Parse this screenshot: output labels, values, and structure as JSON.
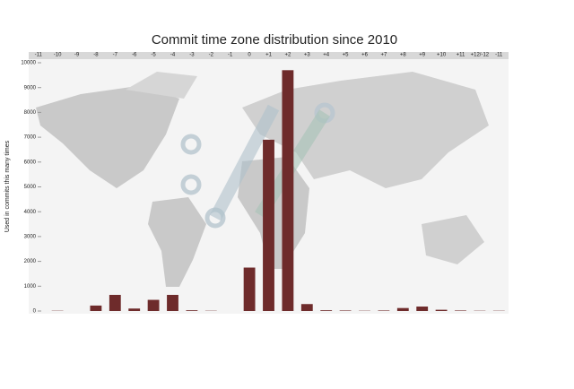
{
  "chart_data": {
    "type": "bar",
    "title": "Commit time zone distribution since 2010",
    "y_label": "Used in commits this many times",
    "categories": [
      "-11",
      "-10",
      "-9",
      "-8",
      "-7",
      "-6",
      "-5",
      "-4",
      "-3",
      "-2",
      "-1",
      "0",
      "+1",
      "+2",
      "+3",
      "+4",
      "+5",
      "+6",
      "+7",
      "+8",
      "+9",
      "+10",
      "+11",
      "+12/-12",
      "-11"
    ],
    "values": [
      0,
      10,
      0,
      220,
      650,
      100,
      450,
      650,
      30,
      10,
      0,
      1750,
      6900,
      9700,
      280,
      30,
      20,
      10,
      20,
      120,
      180,
      50,
      20,
      10,
      10
    ],
    "color": "#6e2b2b",
    "ylim": [
      0,
      10000
    ],
    "yticks": [
      0,
      1000,
      2000,
      3000,
      4000,
      5000,
      6000,
      7000,
      8000,
      9000,
      10000
    ],
    "grid": false
  }
}
